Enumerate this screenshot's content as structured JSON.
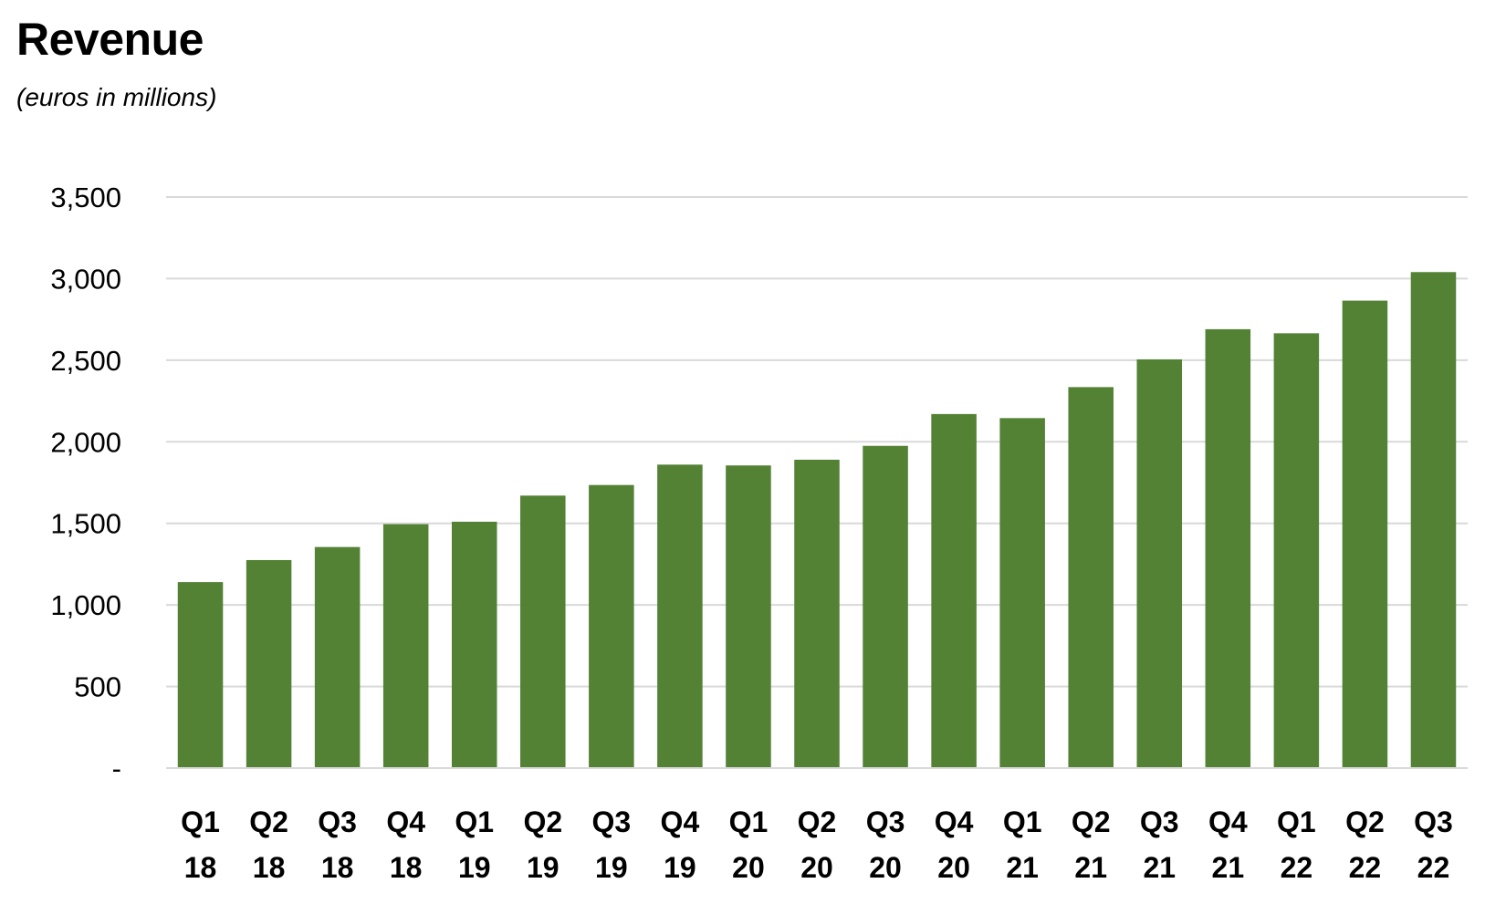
{
  "chart_data": {
    "type": "bar",
    "title": "Revenue",
    "subtitle": "(euros in millions)",
    "xlabel": "",
    "ylabel": "",
    "categories": [
      [
        "Q1",
        "18"
      ],
      [
        "Q2",
        "18"
      ],
      [
        "Q3",
        "18"
      ],
      [
        "Q4",
        "18"
      ],
      [
        "Q1",
        "19"
      ],
      [
        "Q2",
        "19"
      ],
      [
        "Q3",
        "19"
      ],
      [
        "Q4",
        "19"
      ],
      [
        "Q1",
        "20"
      ],
      [
        "Q2",
        "20"
      ],
      [
        "Q3",
        "20"
      ],
      [
        "Q4",
        "20"
      ],
      [
        "Q1",
        "21"
      ],
      [
        "Q2",
        "21"
      ],
      [
        "Q3",
        "21"
      ],
      [
        "Q4",
        "21"
      ],
      [
        "Q1",
        "22"
      ],
      [
        "Q2",
        "22"
      ],
      [
        "Q3",
        "22"
      ]
    ],
    "values": [
      1140,
      1275,
      1355,
      1495,
      1510,
      1670,
      1735,
      1860,
      1855,
      1890,
      1975,
      2170,
      2145,
      2335,
      2505,
      2690,
      2665,
      2865,
      3040
    ],
    "ylim": [
      0,
      3500
    ],
    "yticks": [
      {
        "value": 0,
        "label": "-"
      },
      {
        "value": 500,
        "label": "500"
      },
      {
        "value": 1000,
        "label": "1,000"
      },
      {
        "value": 1500,
        "label": "1,500"
      },
      {
        "value": 2000,
        "label": "2,000"
      },
      {
        "value": 2500,
        "label": "2,500"
      },
      {
        "value": 3000,
        "label": "3,000"
      },
      {
        "value": 3500,
        "label": "3,500"
      }
    ],
    "grid": true,
    "legend": "none",
    "colors": {
      "bar": "#548235",
      "grid": "#d9d9d9",
      "axis": "#d9d9d9"
    }
  }
}
